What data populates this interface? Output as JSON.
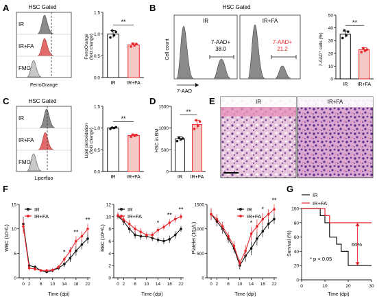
{
  "panels": {
    "A": {
      "letter": "A",
      "gate_title": "HSC Gated",
      "hist_rows": [
        "IR",
        "IR+FA",
        "FMO"
      ],
      "hist_xlabel": "FerroOrange",
      "bar_ylabel_line1": "FerroOrange",
      "bar_ylabel_line2": "(fold change)",
      "sig": "**"
    },
    "B": {
      "letter": "B",
      "gate_title": "HSC Gated",
      "box_titles": [
        "IR",
        "IR+FA"
      ],
      "ylabel": "Cell count",
      "xlabel": "7-AAD",
      "gate_label": "7-AAD+",
      "gate_values": [
        "38.0",
        "21.2"
      ],
      "bar_ylabel": "7-AAD⁺ cells (%)",
      "sig": "**"
    },
    "C": {
      "letter": "C",
      "gate_title": "HSC Gated",
      "hist_rows": [
        "IR",
        "IR+FA",
        "FMO"
      ],
      "hist_xlabel": "Liperfluo",
      "bar_ylabel_line1": "Lipid peroxidation",
      "bar_ylabel_line2": "(fold change)",
      "sig": "**"
    },
    "D": {
      "letter": "D",
      "bar_ylabel": "HSC in BM",
      "sig": "**"
    },
    "E": {
      "letter": "E",
      "titles": [
        "IR",
        "IR+FA"
      ]
    },
    "F": {
      "letter": "F",
      "xlabel": "Time (dpi)",
      "legend": [
        "IR",
        "IR+FA"
      ],
      "ylabel_wbc": "WBC (10⁹/L)",
      "ylabel_rbc": "RBC (10¹²/L)",
      "ylabel_plt": "Platelet (10⁹/L)"
    },
    "G": {
      "letter": "G",
      "legend": [
        "IR",
        "IR+FA"
      ],
      "xlabel": "Time (dpi)",
      "ylabel": "Survival (%)",
      "pct_label": "60%",
      "pvalue": "* p < 0.05"
    }
  },
  "colors": {
    "ir": "#111111",
    "fa": "#e8262a",
    "fa_fill": "#f6c9c7",
    "hist_gray": "#8a8a8a",
    "hist_red": "#e26a6a"
  },
  "chart_data": [
    {
      "id": "A-bar",
      "type": "bar",
      "categories": [
        "IR",
        "IR+FA"
      ],
      "values": [
        1.0,
        0.75
      ],
      "errors": [
        0.08,
        0.04
      ],
      "ylim": [
        0,
        1.5
      ],
      "yticks": [
        0.0,
        0.5,
        1.0,
        1.5
      ],
      "points": [
        [
          0.92,
          1.08,
          0.97,
          1.05
        ],
        [
          0.71,
          0.78,
          0.74,
          0.77
        ]
      ]
    },
    {
      "id": "B-bar",
      "type": "bar",
      "categories": [
        "IR",
        "IR+FA"
      ],
      "values": [
        35,
        23
      ],
      "errors": [
        2.5,
        1.5
      ],
      "ylim": [
        0,
        50
      ],
      "yticks": [
        0,
        10,
        20,
        30,
        40,
        50
      ],
      "points": [
        [
          32,
          38,
          34,
          37
        ],
        [
          21,
          24,
          22,
          23
        ]
      ]
    },
    {
      "id": "C-bar",
      "type": "bar",
      "categories": [
        "IR",
        "IR+FA"
      ],
      "values": [
        1.0,
        0.83
      ],
      "errors": [
        0.02,
        0.03
      ],
      "ylim": [
        0,
        1.5
      ],
      "yticks": [
        0.0,
        0.5,
        1.0,
        1.5
      ],
      "points": [
        [
          0.98,
          1.01,
          1.0,
          1.02
        ],
        [
          0.8,
          0.85,
          0.82,
          0.84
        ]
      ]
    },
    {
      "id": "D-bar",
      "type": "bar",
      "categories": [
        "IR",
        "IR+FA"
      ],
      "values": [
        750,
        1080
      ],
      "errors": [
        50,
        100
      ],
      "ylim": [
        0,
        1500
      ],
      "yticks": [
        0,
        500,
        1000,
        1500
      ],
      "points": [
        [
          700,
          780,
          740,
          760
        ],
        [
          980,
          1180,
          1050,
          1150
        ]
      ]
    },
    {
      "id": "F-wbc",
      "type": "line",
      "x": [
        0,
        2,
        4,
        6,
        8,
        10,
        12,
        14,
        16,
        18,
        20,
        22
      ],
      "xticks": [
        0,
        2,
        6,
        10,
        14,
        18,
        22
      ],
      "ylim": [
        0,
        15
      ],
      "yticks": [
        0,
        5,
        10,
        15
      ],
      "series": [
        {
          "name": "IR",
          "values": [
            11,
            2.5,
            2.2,
            1.5,
            1.2,
            1.5,
            2.0,
            2.8,
            4.0,
            5.5,
            6.8,
            8.0
          ],
          "errors": [
            1.5,
            0.5,
            0.4,
            0.3,
            0.3,
            0.4,
            0.4,
            0.6,
            0.8,
            1.0,
            1.0,
            1.0
          ]
        },
        {
          "name": "IR+FA",
          "values": [
            10.5,
            2.0,
            1.8,
            1.5,
            1.5,
            1.6,
            2.2,
            3.8,
            5.5,
            7.5,
            8.5,
            10.0
          ],
          "errors": [
            1.5,
            0.5,
            0.4,
            0.3,
            0.3,
            0.4,
            0.4,
            0.6,
            0.8,
            1.0,
            1.0,
            1.0
          ]
        }
      ],
      "sig": [
        {
          "x": 14,
          "label": "*"
        },
        {
          "x": 18,
          "label": "**"
        },
        {
          "x": 22,
          "label": "**"
        }
      ]
    },
    {
      "id": "F-rbc",
      "type": "line",
      "x": [
        0,
        2,
        4,
        6,
        8,
        10,
        12,
        14,
        16,
        18,
        20,
        22
      ],
      "xticks": [
        0,
        2,
        6,
        10,
        14,
        18,
        22
      ],
      "ylim": [
        0,
        12
      ],
      "yticks": [
        0,
        2,
        4,
        6,
        8,
        10,
        12
      ],
      "series": [
        {
          "name": "IR",
          "values": [
            10.1,
            9.2,
            8.0,
            7.0,
            6.8,
            6.8,
            6.5,
            6.2,
            6.0,
            6.3,
            7.0,
            8.0
          ],
          "errors": [
            0.5,
            0.6,
            0.7,
            0.6,
            0.6,
            0.5,
            0.5,
            0.5,
            0.5,
            0.6,
            0.6,
            0.5
          ]
        },
        {
          "name": "IR+FA",
          "values": [
            10.2,
            9.5,
            8.8,
            8.0,
            7.5,
            7.0,
            7.0,
            7.8,
            8.3,
            9.0,
            9.6,
            10.0
          ],
          "errors": [
            0.5,
            0.6,
            0.7,
            0.6,
            0.6,
            0.5,
            0.5,
            0.5,
            0.5,
            0.6,
            0.6,
            0.5
          ]
        }
      ],
      "sig": [
        {
          "x": 14,
          "label": "*"
        },
        {
          "x": 18,
          "label": "**"
        },
        {
          "x": 22,
          "label": "**"
        }
      ]
    },
    {
      "id": "F-plt",
      "type": "line",
      "x": [
        0,
        2,
        4,
        6,
        8,
        10,
        12,
        14,
        16,
        18,
        20,
        22
      ],
      "xticks": [
        0,
        2,
        6,
        10,
        14,
        18,
        22
      ],
      "ylim": [
        0,
        1500
      ],
      "yticks": [
        0,
        500,
        1000,
        1500
      ],
      "series": [
        {
          "name": "IR",
          "values": [
            1300,
            1150,
            1000,
            800,
            600,
            250,
            450,
            600,
            800,
            950,
            1100,
            1200
          ],
          "errors": [
            120,
            100,
            100,
            90,
            100,
            80,
            120,
            140,
            140,
            120,
            100,
            100
          ]
        },
        {
          "name": "IR+FA",
          "values": [
            1300,
            1200,
            1050,
            850,
            650,
            300,
            550,
            900,
            1050,
            1200,
            1300,
            1400
          ],
          "errors": [
            120,
            100,
            100,
            90,
            100,
            80,
            120,
            140,
            140,
            120,
            100,
            100
          ]
        }
      ],
      "sig": [
        {
          "x": 14,
          "label": "*"
        },
        {
          "x": 18,
          "label": "*"
        },
        {
          "x": 22,
          "label": "**"
        }
      ]
    },
    {
      "id": "G-survival",
      "type": "line",
      "xlim": [
        0,
        30
      ],
      "ylim": [
        0,
        100
      ],
      "xticks": [
        0,
        10,
        20,
        30
      ],
      "yticks": [
        0,
        20,
        40,
        60,
        80,
        100
      ],
      "series": [
        {
          "name": "IR",
          "steps": [
            [
              0,
              100
            ],
            [
              8,
              100
            ],
            [
              8,
              90
            ],
            [
              10,
              90
            ],
            [
              10,
              80
            ],
            [
              12,
              80
            ],
            [
              12,
              60
            ],
            [
              15,
              60
            ],
            [
              15,
              50
            ],
            [
              17,
              50
            ],
            [
              17,
              40
            ],
            [
              20,
              40
            ],
            [
              20,
              20
            ],
            [
              30,
              20
            ]
          ]
        },
        {
          "name": "IR+FA",
          "steps": [
            [
              0,
              100
            ],
            [
              10,
              100
            ],
            [
              10,
              90
            ],
            [
              12,
              90
            ],
            [
              12,
              80
            ],
            [
              30,
              80
            ]
          ]
        }
      ]
    }
  ]
}
